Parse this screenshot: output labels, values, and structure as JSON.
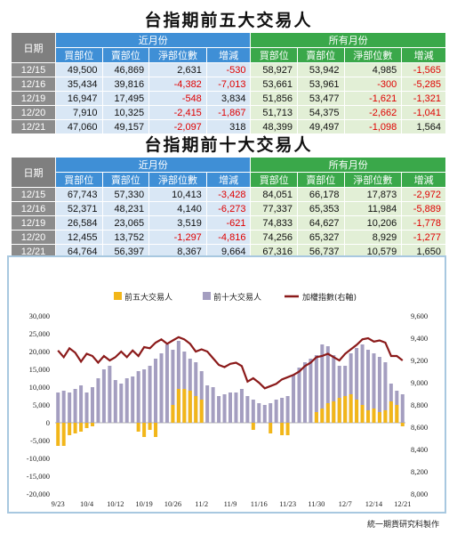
{
  "title_top5": "台指期前五大交易人",
  "title_top10": "台指期前十大交易人",
  "table_headers": {
    "date": "日期",
    "near_month": "近月份",
    "all_months": "所有月份",
    "cols": [
      "買部位",
      "賣部位",
      "淨部位數",
      "增減"
    ]
  },
  "top5_rows": [
    {
      "date": "12/15",
      "n_buy": "49,500",
      "n_sell": "46,869",
      "n_net": "2,631",
      "n_chg": "-530",
      "a_buy": "58,927",
      "a_sell": "53,942",
      "a_net": "4,985",
      "a_chg": "-1,565"
    },
    {
      "date": "12/16",
      "n_buy": "35,434",
      "n_sell": "39,816",
      "n_net": "-4,382",
      "n_chg": "-7,013",
      "a_buy": "53,661",
      "a_sell": "53,961",
      "a_net": "-300",
      "a_chg": "-5,285"
    },
    {
      "date": "12/19",
      "n_buy": "16,947",
      "n_sell": "17,495",
      "n_net": "-548",
      "n_chg": "3,834",
      "a_buy": "51,856",
      "a_sell": "53,477",
      "a_net": "-1,621",
      "a_chg": "-1,321"
    },
    {
      "date": "12/20",
      "n_buy": "7,910",
      "n_sell": "10,325",
      "n_net": "-2,415",
      "n_chg": "-1,867",
      "a_buy": "51,713",
      "a_sell": "54,375",
      "a_net": "-2,662",
      "a_chg": "-1,041"
    },
    {
      "date": "12/21",
      "n_buy": "47,060",
      "n_sell": "49,157",
      "n_net": "-2,097",
      "n_chg": "318",
      "a_buy": "48,399",
      "a_sell": "49,497",
      "a_net": "-1,098",
      "a_chg": "1,564"
    }
  ],
  "top10_rows": [
    {
      "date": "12/15",
      "n_buy": "67,743",
      "n_sell": "57,330",
      "n_net": "10,413",
      "n_chg": "-3,428",
      "a_buy": "84,051",
      "a_sell": "66,178",
      "a_net": "17,873",
      "a_chg": "-2,972"
    },
    {
      "date": "12/16",
      "n_buy": "52,371",
      "n_sell": "48,231",
      "n_net": "4,140",
      "n_chg": "-6,273",
      "a_buy": "77,337",
      "a_sell": "65,353",
      "a_net": "11,984",
      "a_chg": "-5,889"
    },
    {
      "date": "12/19",
      "n_buy": "26,584",
      "n_sell": "23,065",
      "n_net": "3,519",
      "n_chg": "-621",
      "a_buy": "74,833",
      "a_sell": "64,627",
      "a_net": "10,206",
      "a_chg": "-1,778"
    },
    {
      "date": "12/20",
      "n_buy": "12,455",
      "n_sell": "13,752",
      "n_net": "-1,297",
      "n_chg": "-4,816",
      "a_buy": "74,256",
      "a_sell": "65,327",
      "a_net": "8,929",
      "a_chg": "-1,277"
    },
    {
      "date": "12/21",
      "n_buy": "64,764",
      "n_sell": "56,397",
      "n_net": "8,367",
      "n_chg": "9,664",
      "a_buy": "67,316",
      "a_sell": "56,737",
      "a_net": "10,579",
      "a_chg": "1,650"
    }
  ],
  "footer": "統一期貨研究科製作",
  "colors": {
    "top5": "#f2b619",
    "top10": "#a49ec0",
    "index": "#8b1a1a"
  },
  "chart_data": {
    "type": "bar",
    "legend": [
      "前五大交易人",
      "前十大交易人",
      "加權指數(右軸)"
    ],
    "legend_position": "top",
    "ylim_left": [
      -20000,
      30000
    ],
    "ylim_right": [
      8000,
      9600
    ],
    "yticks_left": [
      "30,000",
      "25,000",
      "20,000",
      "15,000",
      "10,000",
      "5,000",
      "0",
      "-5,000",
      "-10,000",
      "-15,000",
      "-20,000"
    ],
    "yticks_right": [
      "9,600",
      "9,400",
      "9,200",
      "9,000",
      "8,800",
      "8,600",
      "8,400",
      "8,200",
      "8,000"
    ],
    "xtick_labels": [
      "9/23",
      "10/4",
      "10/12",
      "10/19",
      "10/26",
      "11/2",
      "11/9",
      "11/16",
      "11/23",
      "11/30",
      "12/7",
      "12/14",
      "12/21"
    ],
    "xtick_positions": [
      0,
      5,
      10,
      15,
      20,
      25,
      30,
      35,
      40,
      45,
      50,
      55,
      60
    ],
    "grid": false,
    "series": [
      {
        "name": "前五大交易人",
        "axis": "left",
        "type": "bar",
        "values": [
          -6500,
          -6500,
          -3500,
          -3000,
          -2500,
          -1500,
          -1000,
          0,
          0,
          0,
          0,
          0,
          0,
          0,
          -2500,
          -4000,
          -2000,
          -4000,
          0,
          0,
          5000,
          9500,
          9500,
          9000,
          7500,
          6500,
          0,
          0,
          0,
          0,
          0,
          0,
          0,
          0,
          -2000,
          0,
          0,
          -3000,
          0,
          -3500,
          -3500,
          0,
          0,
          0,
          0,
          3000,
          4000,
          5500,
          6000,
          7000,
          7500,
          8000,
          6500,
          5000,
          3500,
          4000,
          3000,
          3500,
          6000,
          5000,
          -1000
        ]
      },
      {
        "name": "前十大交易人",
        "axis": "left",
        "type": "bar",
        "values": [
          8500,
          9000,
          8500,
          9500,
          10500,
          8500,
          10000,
          12500,
          15000,
          16000,
          12000,
          11000,
          12500,
          13000,
          14500,
          15000,
          16000,
          18000,
          19500,
          22000,
          20500,
          23000,
          20000,
          18000,
          17000,
          14500,
          10500,
          10000,
          7500,
          8000,
          8500,
          8500,
          9500,
          7500,
          6500,
          5500,
          5000,
          5500,
          6500,
          7000,
          7500,
          13500,
          15500,
          17000,
          18000,
          19000,
          22000,
          21500,
          19000,
          16000,
          16000,
          19500,
          21000,
          22000,
          20500,
          19500,
          18500,
          17000,
          11000,
          9000,
          8000
        ]
      },
      {
        "name": "加權指數(右軸)",
        "axis": "right",
        "type": "line",
        "values": [
          9290,
          9230,
          9310,
          9270,
          9190,
          9260,
          9240,
          9180,
          9240,
          9200,
          9230,
          9280,
          9230,
          9290,
          9240,
          9320,
          9310,
          9360,
          9390,
          9350,
          9380,
          9410,
          9390,
          9350,
          9280,
          9300,
          9280,
          9220,
          9160,
          9140,
          9170,
          9180,
          9150,
          9010,
          9040,
          9000,
          8950,
          8970,
          8990,
          9030,
          9050,
          9070,
          9100,
          9150,
          9180,
          9230,
          9240,
          9260,
          9230,
          9200,
          9260,
          9300,
          9340,
          9390,
          9400,
          9370,
          9380,
          9360,
          9240,
          9240,
          9200
        ]
      }
    ]
  }
}
